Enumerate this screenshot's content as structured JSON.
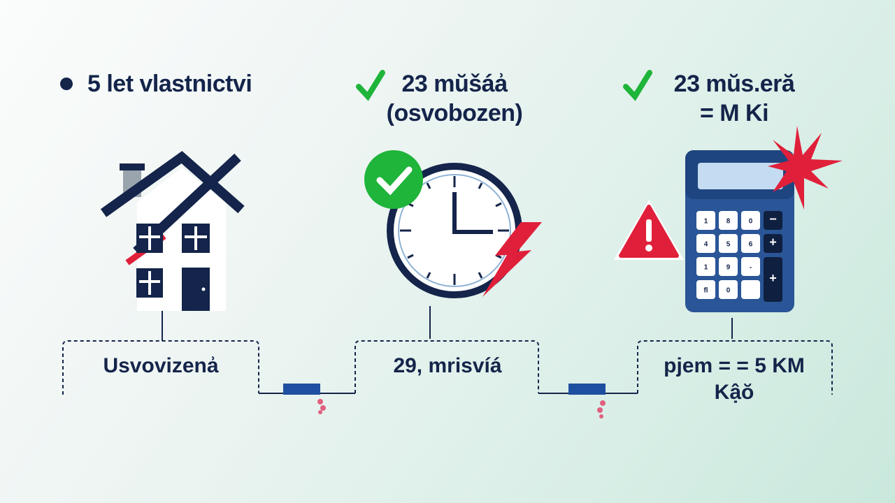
{
  "columns": [
    {
      "heading": "5 let vlastnictvi",
      "marker": "bullet-icon",
      "label": "Usvovizenẚ",
      "illustration": "house-icon"
    },
    {
      "heading_lines": [
        "23 mŭšáẚ",
        "(osvobozen)"
      ],
      "marker": "check-icon",
      "label": "29, mrisvíá",
      "illustration": "clock-icon"
    },
    {
      "heading_lines": [
        "23 mŭs.eră",
        "= M Ki"
      ],
      "marker": "check-icon",
      "label_lines": [
        "pjem = = 5 KM",
        "Kậŏ"
      ],
      "illustration": "calculator-icon"
    }
  ],
  "calculator_keys": [
    "1",
    "8",
    "0",
    "−",
    "4",
    "5",
    "6",
    "+",
    "1",
    "9",
    "-",
    "+",
    "fl",
    "0",
    ""
  ],
  "colors": {
    "navy": "#14244a",
    "green": "#1fb43a",
    "red": "#e0203a",
    "blue": "#2a5596"
  }
}
